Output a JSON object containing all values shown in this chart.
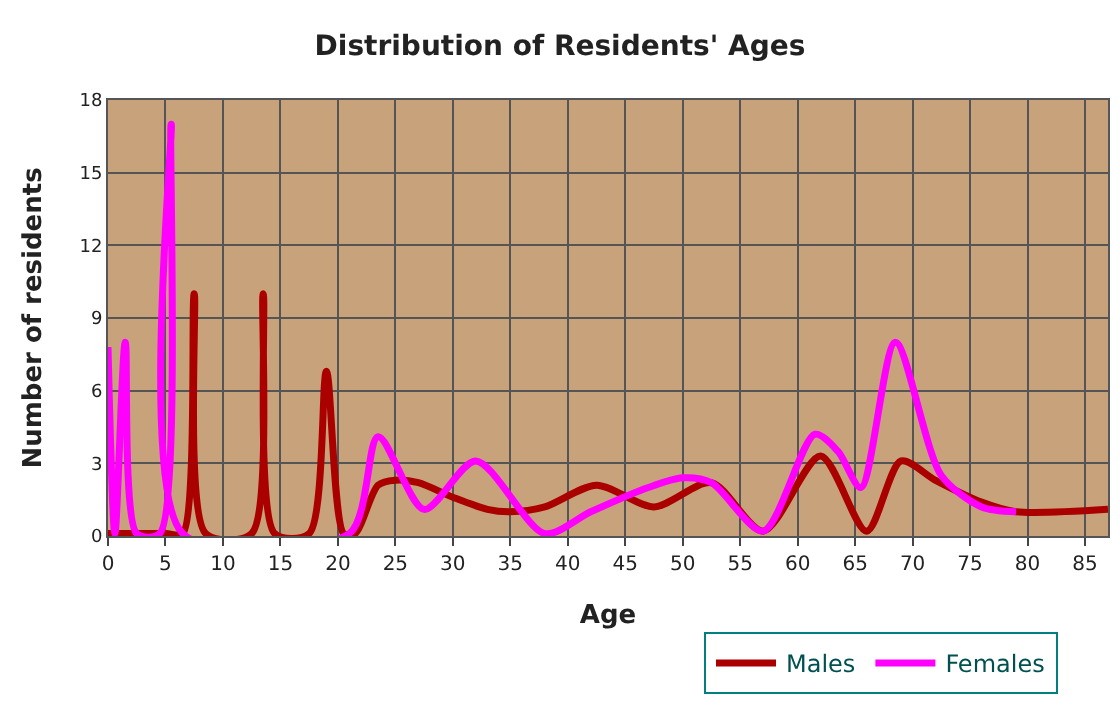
{
  "chart_data": {
    "type": "line",
    "title": "Distribution of Residents' Ages",
    "xlabel": "Age",
    "ylabel": "Number of residents",
    "xlim": [
      0,
      87
    ],
    "xticks": [
      0,
      5,
      10,
      15,
      20,
      25,
      30,
      35,
      40,
      45,
      50,
      55,
      60,
      65,
      70,
      75,
      80,
      85
    ],
    "ylim": [
      0,
      18
    ],
    "yticks": [
      0,
      3,
      6,
      9,
      12,
      15,
      18
    ],
    "grid": true,
    "legend": "bottom",
    "marker": "none",
    "line_style": "solid",
    "series": [
      {
        "name": "Males",
        "color": "#aa0000",
        "x": [
          0,
          5,
          6.5,
          7.5,
          8.5,
          12.5,
          13.5,
          14.5,
          17.5,
          19,
          20.5,
          21.5,
          23.5,
          25,
          27,
          30,
          33,
          35,
          38,
          42.5,
          47.5,
          52.5,
          57,
          62,
          66,
          69,
          72,
          76,
          79,
          87
        ],
        "values": [
          0.1,
          0.1,
          0.1,
          10,
          0.1,
          0.1,
          10,
          0.1,
          0.1,
          6.8,
          0.1,
          0.1,
          2.1,
          2.3,
          2.2,
          1.6,
          1.1,
          1.0,
          1.2,
          2.1,
          1.2,
          2.2,
          0.2,
          3.3,
          0.2,
          3.1,
          2.3,
          1.4,
          1.0,
          1.1
        ]
      },
      {
        "name": "Females",
        "color": "#ff00ff",
        "x": [
          0,
          0.6,
          1.5,
          2.5,
          4.5,
          5.5,
          6.5,
          21,
          23.5,
          27.5,
          32,
          38,
          42,
          47,
          50,
          52.5,
          57,
          61.5,
          63.5,
          65.5,
          68.5,
          72.5,
          76,
          79
        ],
        "values": [
          7.8,
          0.1,
          8,
          0.1,
          0.1,
          17,
          0.1,
          0.1,
          4.1,
          1.1,
          3.1,
          0.1,
          1.0,
          2.0,
          2.4,
          2.2,
          0.2,
          4.2,
          3.5,
          2.0,
          8.0,
          2.5,
          1.2,
          1.0
        ]
      }
    ]
  }
}
